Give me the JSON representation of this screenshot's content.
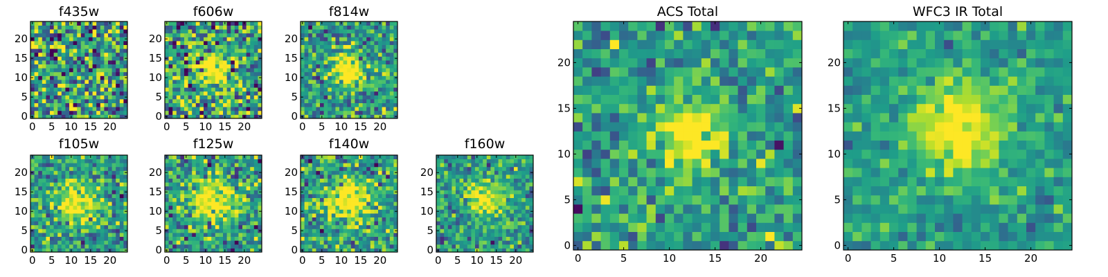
{
  "chart_data": [
    {
      "type": "heatmap",
      "title": "f435w",
      "xticks": [
        "0",
        "5",
        "10",
        "15",
        "20"
      ],
      "yticks": [
        "0",
        "5",
        "10",
        "15",
        "20"
      ],
      "xlim": [
        -0.5,
        24.5
      ],
      "ylim": [
        -0.5,
        24.5
      ],
      "grid": false,
      "colormap": "viridis",
      "grid_size": [
        25,
        25
      ],
      "source_sigma": 0.0,
      "noise_level": 0.55,
      "center": [
        12,
        12
      ],
      "seed": 11
    },
    {
      "type": "heatmap",
      "title": "f606w",
      "xticks": [
        "0",
        "5",
        "10",
        "15",
        "20"
      ],
      "yticks": [
        "0",
        "5",
        "10",
        "15",
        "20"
      ],
      "xlim": [
        -0.5,
        24.5
      ],
      "ylim": [
        -0.5,
        24.5
      ],
      "grid": false,
      "colormap": "viridis",
      "grid_size": [
        25,
        25
      ],
      "source_sigma": 3.0,
      "noise_level": 0.5,
      "center": [
        12,
        12
      ],
      "seed": 23
    },
    {
      "type": "heatmap",
      "title": "f814w",
      "xticks": [
        "0",
        "5",
        "10",
        "15",
        "20"
      ],
      "yticks": [
        "0",
        "5",
        "10",
        "15",
        "20"
      ],
      "xlim": [
        -0.5,
        24.5
      ],
      "ylim": [
        -0.5,
        24.5
      ],
      "grid": false,
      "colormap": "viridis",
      "grid_size": [
        25,
        25
      ],
      "source_sigma": 3.0,
      "noise_level": 0.35,
      "center": [
        12,
        12
      ],
      "seed": 37
    },
    {
      "type": "heatmap",
      "title": "f105w",
      "xticks": [
        "0",
        "5",
        "10",
        "15",
        "20"
      ],
      "yticks": [
        "0",
        "5",
        "10",
        "15",
        "20"
      ],
      "xlim": [
        -0.5,
        24.5
      ],
      "ylim": [
        -0.5,
        24.5
      ],
      "grid": false,
      "colormap": "viridis",
      "grid_size": [
        25,
        25
      ],
      "source_sigma": 3.5,
      "noise_level": 0.35,
      "center": [
        12,
        12
      ],
      "seed": 41
    },
    {
      "type": "heatmap",
      "title": "f125w",
      "xticks": [
        "0",
        "5",
        "10",
        "15",
        "20"
      ],
      "yticks": [
        "0",
        "5",
        "10",
        "15",
        "20"
      ],
      "xlim": [
        -0.5,
        24.5
      ],
      "ylim": [
        -0.5,
        24.5
      ],
      "grid": false,
      "colormap": "viridis",
      "grid_size": [
        25,
        25
      ],
      "source_sigma": 4.0,
      "noise_level": 0.4,
      "center": [
        12,
        13
      ],
      "seed": 53
    },
    {
      "type": "heatmap",
      "title": "f140w",
      "xticks": [
        "0",
        "5",
        "10",
        "15",
        "20"
      ],
      "yticks": [
        "0",
        "5",
        "10",
        "15",
        "20"
      ],
      "xlim": [
        -0.5,
        24.5
      ],
      "ylim": [
        -0.5,
        24.5
      ],
      "grid": false,
      "colormap": "viridis",
      "grid_size": [
        25,
        25
      ],
      "source_sigma": 3.5,
      "noise_level": 0.35,
      "center": [
        12,
        13
      ],
      "seed": 67
    },
    {
      "type": "heatmap",
      "title": "f160w",
      "xticks": [
        "0",
        "5",
        "10",
        "15",
        "20"
      ],
      "yticks": [
        "0",
        "5",
        "10",
        "15",
        "20"
      ],
      "xlim": [
        -0.5,
        24.5
      ],
      "ylim": [
        -0.5,
        24.5
      ],
      "grid": false,
      "colormap": "viridis",
      "grid_size": [
        25,
        25
      ],
      "source_sigma": 3.0,
      "noise_level": 0.3,
      "center": [
        12,
        13
      ],
      "seed": 79
    },
    {
      "type": "heatmap",
      "title": "ACS Total",
      "xticks": [
        "0",
        "5",
        "10",
        "15",
        "20"
      ],
      "yticks": [
        "0",
        "5",
        "10",
        "15",
        "20"
      ],
      "xlim": [
        -0.5,
        24.5
      ],
      "ylim": [
        -0.5,
        24.5
      ],
      "grid": false,
      "colormap": "viridis",
      "grid_size": [
        25,
        25
      ],
      "source_sigma": 2.5,
      "noise_level": 0.3,
      "center": [
        12,
        12
      ],
      "seed": 91
    },
    {
      "type": "heatmap",
      "title": "WFC3 IR Total",
      "xticks": [
        "0",
        "5",
        "10",
        "15",
        "20"
      ],
      "yticks": [
        "0",
        "5",
        "10",
        "15",
        "20"
      ],
      "xlim": [
        -0.5,
        24.5
      ],
      "ylim": [
        -0.5,
        24.5
      ],
      "grid": false,
      "colormap": "viridis",
      "grid_size": [
        25,
        25
      ],
      "source_sigma": 3.5,
      "noise_level": 0.2,
      "center": [
        12,
        13
      ],
      "seed": 103
    }
  ]
}
